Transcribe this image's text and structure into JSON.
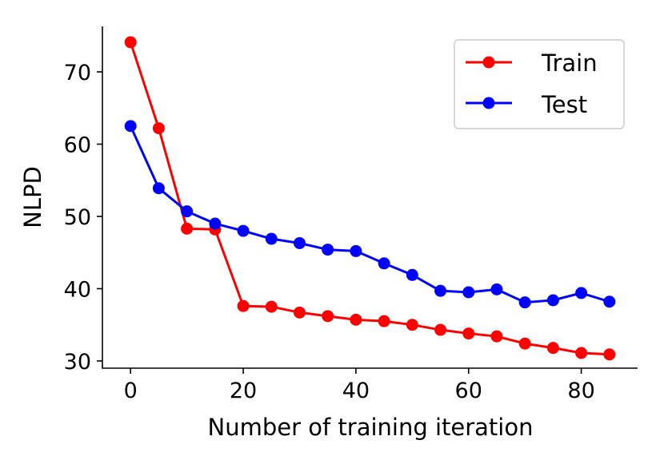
{
  "chart_data": {
    "type": "line",
    "title": "",
    "xlabel": "Number of training iteration",
    "ylabel": "NLPD",
    "xlim": [
      -5,
      90
    ],
    "ylim": [
      29,
      76.3
    ],
    "xticks": [
      0,
      20,
      40,
      60,
      80
    ],
    "yticks": [
      30,
      40,
      50,
      60,
      70
    ],
    "grid": false,
    "legend_position": "top-right",
    "x": [
      0,
      5,
      10,
      15,
      20,
      25,
      30,
      35,
      40,
      45,
      50,
      55,
      60,
      65,
      70,
      75,
      80,
      85
    ],
    "series": [
      {
        "name": "Train",
        "color": "#ff0000",
        "values": [
          74.1,
          62.2,
          48.3,
          48.2,
          37.6,
          37.5,
          36.7,
          36.2,
          35.7,
          35.5,
          35.0,
          34.3,
          33.8,
          33.4,
          32.4,
          31.8,
          31.1,
          30.9
        ]
      },
      {
        "name": "Test",
        "color": "#0000ff",
        "values": [
          62.5,
          53.9,
          50.7,
          49.0,
          48.0,
          46.9,
          46.3,
          45.4,
          45.2,
          43.5,
          41.9,
          39.7,
          39.5,
          39.9,
          38.1,
          38.4,
          39.4,
          38.2
        ]
      }
    ]
  }
}
